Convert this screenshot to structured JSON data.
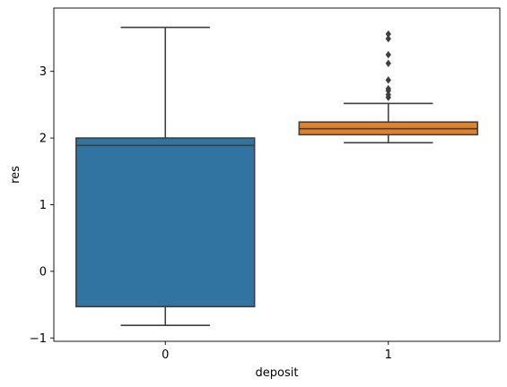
{
  "chart_data": {
    "type": "box",
    "title": "",
    "xlabel": "deposit",
    "ylabel": "res",
    "categories": [
      "0",
      "1"
    ],
    "ylim": [
      -1.05,
      3.95
    ],
    "yticks": [
      -1,
      0,
      1,
      2,
      3
    ],
    "ytick_labels": [
      "−1",
      "0",
      "1",
      "2",
      "3"
    ],
    "grid": false,
    "legend": "none",
    "boxes": [
      {
        "category": "0",
        "color": "#3274a1",
        "whisker_low": -0.81,
        "q1": -0.53,
        "median": 1.89,
        "q3": 2.0,
        "whisker_high": 3.66,
        "outliers": []
      },
      {
        "category": "1",
        "color": "#e1812c",
        "whisker_low": 1.93,
        "q1": 2.05,
        "median": 2.14,
        "q3": 2.24,
        "whisker_high": 2.52,
        "outliers": [
          2.61,
          2.65,
          2.71,
          2.74,
          2.87,
          3.12,
          3.25,
          3.49,
          3.56
        ]
      }
    ],
    "line_color": "#3f3f3f"
  }
}
